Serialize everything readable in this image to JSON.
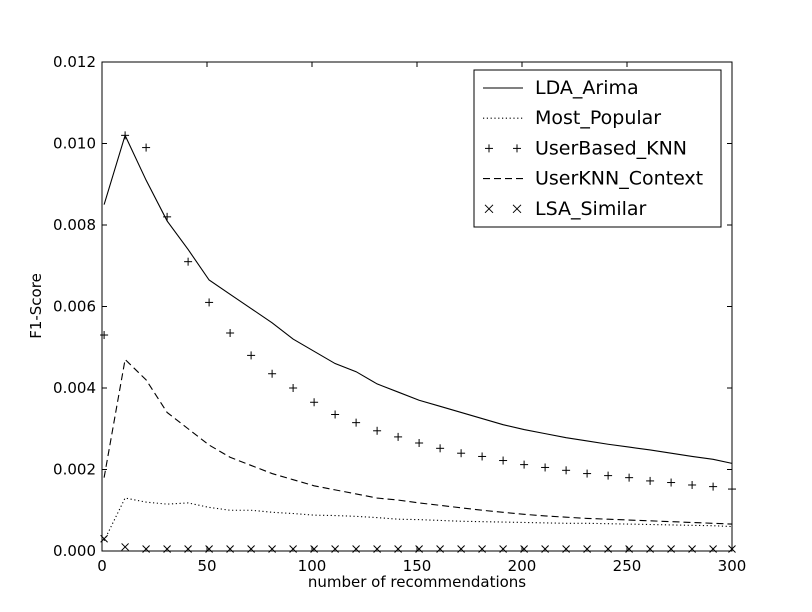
{
  "chart_data": {
    "type": "line",
    "xlabel": "number of recommendations",
    "ylabel": "F1-Score",
    "xlim": [
      0,
      300
    ],
    "ylim": [
      0,
      0.012
    ],
    "xticks": [
      "0",
      "50",
      "100",
      "150",
      "200",
      "250",
      "300"
    ],
    "yticks": [
      "0.000",
      "0.002",
      "0.004",
      "0.006",
      "0.008",
      "0.010",
      "0.012"
    ],
    "grid": false,
    "legend_position": "top-right",
    "x": [
      1,
      11,
      21,
      31,
      41,
      51,
      61,
      71,
      81,
      91,
      101,
      111,
      121,
      131,
      141,
      151,
      161,
      171,
      181,
      191,
      201,
      211,
      221,
      231,
      241,
      251,
      261,
      271,
      281,
      291,
      300
    ],
    "series": [
      {
        "name": "LDA_Arima",
        "style": "solid",
        "values": [
          0.0085,
          0.0102,
          0.0091,
          0.0081,
          0.0074,
          0.00665,
          0.0063,
          0.00595,
          0.0056,
          0.0052,
          0.0049,
          0.0046,
          0.0044,
          0.0041,
          0.0039,
          0.0037,
          0.00355,
          0.0034,
          0.00325,
          0.0031,
          0.00298,
          0.00288,
          0.00278,
          0.0027,
          0.00262,
          0.00255,
          0.00248,
          0.0024,
          0.00232,
          0.00225,
          0.00215
        ]
      },
      {
        "name": "Most_Popular",
        "style": "dotted",
        "values": [
          0.00025,
          0.0013,
          0.0012,
          0.00115,
          0.00118,
          0.00107,
          0.001,
          0.001,
          0.00095,
          0.00092,
          0.00088,
          0.00087,
          0.00085,
          0.00082,
          0.00078,
          0.00077,
          0.00075,
          0.00073,
          0.00072,
          0.00071,
          0.0007,
          0.00069,
          0.00068,
          0.00068,
          0.00067,
          0.00066,
          0.00065,
          0.00064,
          0.00063,
          0.00062,
          0.0006
        ]
      },
      {
        "name": "UserBased_KNN",
        "style": "plus",
        "values": [
          0.0053,
          0.0102,
          0.0099,
          0.0082,
          0.0071,
          0.0061,
          0.00535,
          0.0048,
          0.00435,
          0.004,
          0.00365,
          0.00335,
          0.00315,
          0.00295,
          0.0028,
          0.00265,
          0.00252,
          0.0024,
          0.00232,
          0.00222,
          0.00212,
          0.00205,
          0.00198,
          0.0019,
          0.00185,
          0.0018,
          0.00172,
          0.00168,
          0.00162,
          0.00158,
          0.00152
        ]
      },
      {
        "name": "UserKNN_Context",
        "style": "dashed",
        "values": [
          0.0018,
          0.0047,
          0.0042,
          0.0034,
          0.003,
          0.0026,
          0.0023,
          0.0021,
          0.0019,
          0.00175,
          0.0016,
          0.0015,
          0.0014,
          0.0013,
          0.00125,
          0.00118,
          0.00112,
          0.00106,
          0.001,
          0.00095,
          0.0009,
          0.00086,
          0.00083,
          0.0008,
          0.00078,
          0.00076,
          0.00074,
          0.00072,
          0.0007,
          0.00068,
          0.00066
        ]
      },
      {
        "name": "LSA_Similar",
        "style": "cross",
        "values": [
          0.0003,
          0.0001,
          5e-05,
          5e-05,
          5e-05,
          5e-05,
          5e-05,
          5e-05,
          5e-05,
          5e-05,
          5e-05,
          5e-05,
          5e-05,
          5e-05,
          5e-05,
          5e-05,
          5e-05,
          5e-05,
          5e-05,
          5e-05,
          5e-05,
          5e-05,
          5e-05,
          5e-05,
          5e-05,
          5e-05,
          5e-05,
          5e-05,
          5e-05,
          5e-05,
          5e-05
        ]
      }
    ]
  }
}
